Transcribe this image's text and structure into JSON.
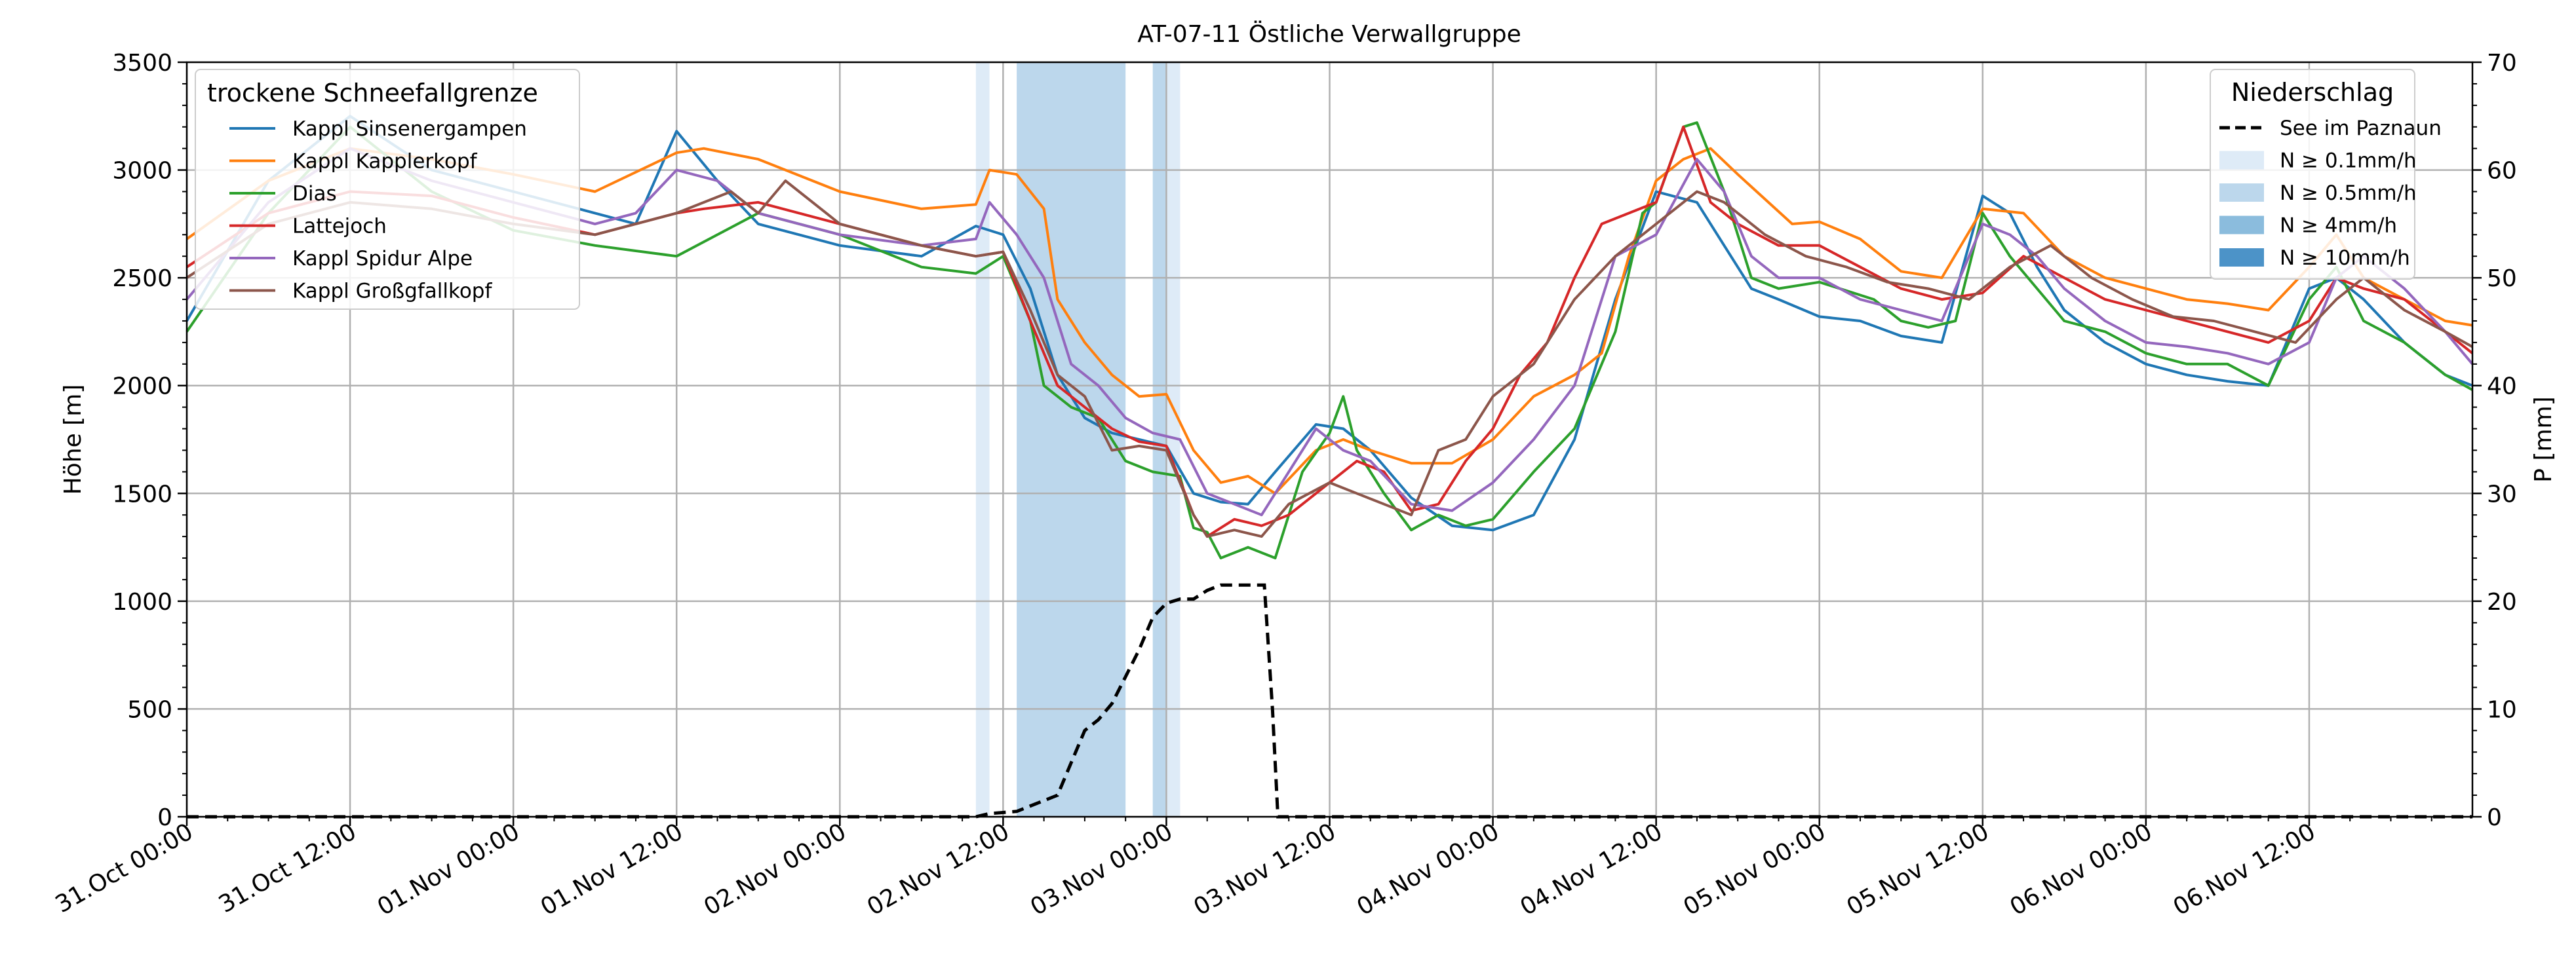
{
  "chart_data": {
    "type": "line",
    "title": "AT-07-11 Östliche Verwallgruppe",
    "ylabel": "Höhe [m]",
    "y2label": "P [mm]",
    "xlim": [
      0,
      168
    ],
    "ylim": [
      0,
      3500
    ],
    "y2lim": [
      0,
      70
    ],
    "grid": true,
    "x_unit": "hours since 31.Oct 00:00",
    "xticks": [
      0,
      12,
      24,
      36,
      48,
      60,
      72,
      84,
      96,
      108,
      120,
      132,
      144,
      156
    ],
    "xtick_labels": [
      "31.Oct 00:00",
      "31.Oct 12:00",
      "01.Nov 00:00",
      "01.Nov 12:00",
      "02.Nov 00:00",
      "02.Nov 12:00",
      "03.Nov 00:00",
      "03.Nov 12:00",
      "04.Nov 00:00",
      "04.Nov 12:00",
      "05.Nov 00:00",
      "05.Nov 12:00",
      "06.Nov 00:00",
      "06.Nov 12:00"
    ],
    "yticks": [
      0,
      500,
      1000,
      1500,
      2000,
      2500,
      3000,
      3500
    ],
    "y2ticks": [
      0,
      10,
      20,
      30,
      40,
      50,
      60,
      70
    ],
    "legend_snow": {
      "title": "trockene Schneefallgrenze",
      "position": "top-left"
    },
    "series": [
      {
        "name": "Kappl Sinsenergampen",
        "color": "#1f77b4",
        "x": [
          0,
          6,
          12,
          18,
          24,
          30,
          33,
          36,
          39,
          42,
          48,
          54,
          58,
          60,
          62,
          64,
          66,
          68,
          70,
          72,
          74,
          76,
          78,
          80,
          83,
          85,
          87,
          90,
          93,
          96,
          99,
          102,
          105,
          108,
          111,
          113,
          115,
          117,
          120,
          123,
          126,
          129,
          132,
          134,
          136,
          138,
          141,
          144,
          147,
          150,
          153,
          156,
          158,
          160,
          163,
          166,
          168
        ],
        "y": [
          2300,
          2950,
          3250,
          3000,
          2900,
          2800,
          2750,
          3180,
          2950,
          2750,
          2650,
          2600,
          2740,
          2700,
          2450,
          2050,
          1850,
          1780,
          1750,
          1720,
          1500,
          1460,
          1450,
          1600,
          1820,
          1800,
          1700,
          1480,
          1350,
          1330,
          1400,
          1750,
          2400,
          2900,
          2850,
          2650,
          2450,
          2400,
          2320,
          2300,
          2230,
          2200,
          2880,
          2800,
          2550,
          2350,
          2200,
          2100,
          2050,
          2020,
          2000,
          2450,
          2500,
          2400,
          2200,
          2050,
          2000
        ]
      },
      {
        "name": "Kappl Kapplerkopf",
        "color": "#ff7f0e",
        "x": [
          0,
          6,
          12,
          18,
          24,
          30,
          36,
          38,
          42,
          48,
          54,
          58,
          59,
          61,
          63,
          64,
          66,
          68,
          70,
          72,
          74,
          76,
          78,
          80,
          83,
          85,
          87,
          90,
          93,
          96,
          99,
          102,
          104,
          106,
          108,
          110,
          112,
          114,
          118,
          120,
          123,
          126,
          129,
          132,
          135,
          138,
          141,
          144,
          147,
          150,
          153,
          156,
          158,
          160,
          163,
          166,
          168
        ],
        "y": [
          2680,
          2950,
          3100,
          3050,
          2980,
          2900,
          3080,
          3100,
          3050,
          2900,
          2820,
          2840,
          3000,
          2980,
          2820,
          2400,
          2200,
          2050,
          1950,
          1960,
          1700,
          1550,
          1580,
          1500,
          1700,
          1750,
          1700,
          1640,
          1640,
          1750,
          1950,
          2050,
          2150,
          2600,
          2950,
          3050,
          3100,
          2980,
          2750,
          2760,
          2680,
          2530,
          2500,
          2820,
          2800,
          2600,
          2500,
          2450,
          2400,
          2380,
          2350,
          2550,
          2700,
          2500,
          2400,
          2300,
          2280
        ]
      },
      {
        "name": "Dias",
        "color": "#2ca02c",
        "x": [
          0,
          6,
          12,
          18,
          24,
          30,
          36,
          42,
          48,
          54,
          58,
          60,
          62,
          63,
          65,
          67,
          69,
          71,
          73,
          74,
          75,
          76,
          78,
          80,
          82,
          84,
          85,
          86,
          88,
          90,
          92,
          94,
          96,
          99,
          102,
          105,
          107,
          108,
          110,
          111,
          113,
          115,
          117,
          120,
          124,
          126,
          128,
          130,
          132,
          134,
          136,
          138,
          141,
          144,
          147,
          150,
          153,
          156,
          158,
          160,
          163,
          166,
          168
        ],
        "y": [
          2250,
          2800,
          3200,
          2900,
          2720,
          2650,
          2600,
          2800,
          2700,
          2550,
          2520,
          2600,
          2300,
          2000,
          1900,
          1850,
          1650,
          1600,
          1580,
          1340,
          1320,
          1200,
          1250,
          1200,
          1600,
          1780,
          1950,
          1700,
          1500,
          1330,
          1400,
          1350,
          1380,
          1600,
          1800,
          2250,
          2800,
          2850,
          3200,
          3220,
          2900,
          2500,
          2450,
          2480,
          2400,
          2300,
          2270,
          2300,
          2800,
          2600,
          2450,
          2300,
          2250,
          2150,
          2100,
          2100,
          2000,
          2400,
          2550,
          2300,
          2200,
          2050,
          1980
        ]
      },
      {
        "name": "Lattejoch",
        "color": "#d62728",
        "x": [
          0,
          6,
          12,
          18,
          24,
          30,
          36,
          38,
          42,
          48,
          54,
          58,
          60,
          62,
          64,
          66,
          68,
          70,
          72,
          74,
          75,
          77,
          79,
          81,
          84,
          86,
          88,
          90,
          92,
          94,
          96,
          98,
          100,
          102,
          104,
          106,
          108,
          110,
          112,
          114,
          117,
          120,
          123,
          126,
          129,
          132,
          135,
          138,
          141,
          144,
          147,
          150,
          153,
          156,
          158,
          160,
          163,
          166,
          168
        ],
        "y": [
          2550,
          2800,
          2900,
          2880,
          2780,
          2700,
          2800,
          2820,
          2850,
          2750,
          2650,
          2600,
          2620,
          2300,
          2000,
          1900,
          1800,
          1740,
          1720,
          1400,
          1300,
          1380,
          1350,
          1400,
          1550,
          1650,
          1600,
          1420,
          1450,
          1650,
          1800,
          2050,
          2200,
          2500,
          2750,
          2800,
          2850,
          3200,
          2850,
          2750,
          2650,
          2650,
          2550,
          2450,
          2400,
          2430,
          2600,
          2500,
          2400,
          2350,
          2300,
          2250,
          2200,
          2300,
          2500,
          2450,
          2400,
          2250,
          2150
        ]
      },
      {
        "name": "Kappl Spidur Alpe",
        "color": "#9467bd",
        "x": [
          0,
          6,
          12,
          18,
          24,
          30,
          33,
          36,
          39,
          42,
          48,
          54,
          58,
          59,
          61,
          63,
          65,
          67,
          69,
          71,
          73,
          75,
          77,
          79,
          81,
          83,
          85,
          87,
          90,
          93,
          96,
          99,
          102,
          105,
          108,
          111,
          113,
          115,
          117,
          120,
          123,
          126,
          129,
          132,
          134,
          136,
          138,
          141,
          144,
          147,
          150,
          153,
          156,
          158,
          160,
          163,
          166,
          168
        ],
        "y": [
          2400,
          2850,
          3100,
          2950,
          2850,
          2750,
          2800,
          3000,
          2950,
          2800,
          2700,
          2650,
          2680,
          2850,
          2700,
          2500,
          2100,
          2000,
          1850,
          1780,
          1750,
          1500,
          1450,
          1400,
          1600,
          1800,
          1700,
          1650,
          1450,
          1420,
          1550,
          1750,
          2000,
          2600,
          2700,
          3050,
          2900,
          2600,
          2500,
          2500,
          2400,
          2350,
          2300,
          2750,
          2700,
          2600,
          2450,
          2300,
          2200,
          2180,
          2150,
          2100,
          2200,
          2500,
          2600,
          2450,
          2250,
          2100
        ]
      },
      {
        "name": "Kappl Großgfallkopf",
        "color": "#8c564b",
        "x": [
          0,
          6,
          12,
          18,
          24,
          30,
          36,
          40,
          42,
          44,
          48,
          54,
          58,
          60,
          62,
          64,
          66,
          68,
          70,
          72,
          74,
          75,
          77,
          79,
          81,
          84,
          86,
          88,
          90,
          92,
          94,
          96,
          99,
          102,
          105,
          108,
          111,
          113,
          116,
          119,
          122,
          125,
          128,
          131,
          134,
          137,
          140,
          143,
          146,
          149,
          152,
          155,
          158,
          160,
          163,
          166,
          168
        ],
        "y": [
          2500,
          2750,
          2850,
          2820,
          2750,
          2700,
          2800,
          2900,
          2800,
          2950,
          2750,
          2650,
          2600,
          2620,
          2350,
          2050,
          1950,
          1700,
          1720,
          1700,
          1400,
          1300,
          1330,
          1300,
          1450,
          1550,
          1500,
          1450,
          1400,
          1700,
          1750,
          1950,
          2100,
          2400,
          2600,
          2750,
          2900,
          2850,
          2700,
          2600,
          2550,
          2480,
          2450,
          2400,
          2550,
          2650,
          2500,
          2400,
          2320,
          2300,
          2250,
          2200,
          2400,
          2500,
          2350,
          2250,
          2180
        ]
      }
    ],
    "legend_precip": {
      "title": "Niederschlag",
      "position": "top-right",
      "items": [
        {
          "label": "See im Paznaun",
          "kind": "line",
          "color": "#000000"
        },
        {
          "label": "N ≥ 0.1mm/h",
          "kind": "patch",
          "color": "#deebf7"
        },
        {
          "label": "N ≥ 0.5mm/h",
          "kind": "patch",
          "color": "#bcd7ec"
        },
        {
          "label": "N ≥ 4mm/h",
          "kind": "patch",
          "color": "#8bbcdd"
        },
        {
          "label": "N ≥ 10mm/h",
          "kind": "patch",
          "color": "#4c93c8"
        }
      ]
    },
    "precip_cumulative": {
      "name": "See im Paznaun",
      "x": [
        0,
        58,
        59,
        61,
        62,
        64,
        65,
        66,
        67,
        68,
        69,
        70,
        71,
        72,
        73,
        74,
        75,
        76,
        77,
        78,
        79,
        79.2,
        79.8,
        80.2,
        168
      ],
      "y": [
        0,
        0,
        0.3,
        0.5,
        1,
        2,
        5,
        8,
        9,
        10.5,
        13,
        15.5,
        18.5,
        19.8,
        20.2,
        20.2,
        21,
        21.5,
        21.5,
        21.5,
        21.5,
        21.5,
        10,
        0,
        0
      ]
    },
    "precip_bands": [
      {
        "start": 58.0,
        "end": 59.0,
        "level": "N ≥ 0.1mm/h"
      },
      {
        "start": 61.0,
        "end": 69.0,
        "level": "N ≥ 0.5mm/h"
      },
      {
        "start": 71.0,
        "end": 73.0,
        "level": "N ≥ 0.5mm/h"
      },
      {
        "start": 72.0,
        "end": 73.0,
        "level": "N ≥ 0.1mm/h"
      }
    ]
  }
}
